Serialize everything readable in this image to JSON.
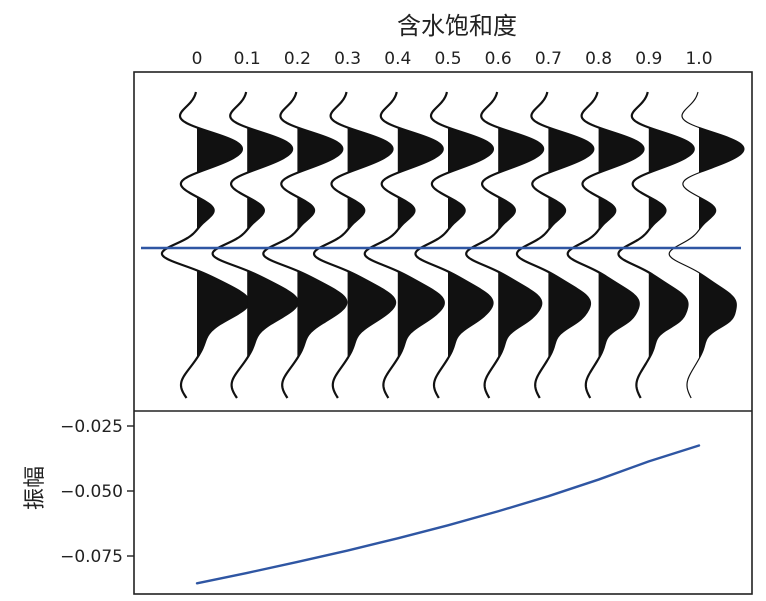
{
  "chart_data": [
    {
      "type": "wiggle",
      "title": "含水饱和度",
      "x_ticks": [
        "0",
        "0.1",
        "0.2",
        "0.3",
        "0.4",
        "0.5",
        "0.6",
        "0.7",
        "0.8",
        "0.9",
        "1.0"
      ],
      "saturation": [
        0,
        0.1,
        0.2,
        0.3,
        0.4,
        0.5,
        0.6,
        0.7,
        0.8,
        0.9,
        1.0
      ],
      "horizon_color": "#2f56a3",
      "wave_color": "#111111"
    },
    {
      "type": "line",
      "ylabel": "振幅",
      "y_ticks": [
        "−0.025",
        "−0.050",
        "−0.075"
      ],
      "y_tick_values": [
        -0.025,
        -0.05,
        -0.075
      ],
      "ylim": [
        -0.088,
        -0.017
      ],
      "x": [
        0,
        0.1,
        0.2,
        0.3,
        0.4,
        0.5,
        0.6,
        0.7,
        0.8,
        0.9,
        1.0
      ],
      "y": [
        -0.0855,
        -0.0815,
        -0.0773,
        -0.0729,
        -0.0682,
        -0.0632,
        -0.0578,
        -0.052,
        -0.0456,
        -0.0386,
        -0.0325
      ],
      "line_color": "#2f56a3"
    }
  ]
}
